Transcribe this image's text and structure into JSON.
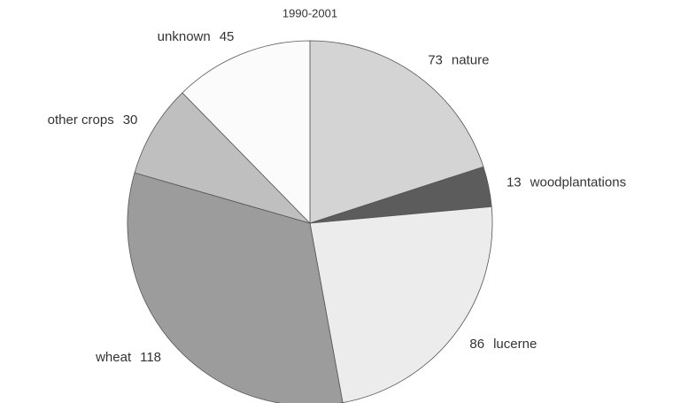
{
  "chart_data": {
    "type": "pie",
    "title": "1990-2001",
    "categories": [
      "nature",
      "woodplantations",
      "lucerne",
      "wheat",
      "other crops",
      "unknown"
    ],
    "values": [
      73,
      13,
      86,
      118,
      30,
      45
    ],
    "colors": [
      "#d4d4d4",
      "#5c5c5c",
      "#ececec",
      "#9c9c9c",
      "#bfbfbf",
      "#fbfbfb"
    ]
  }
}
